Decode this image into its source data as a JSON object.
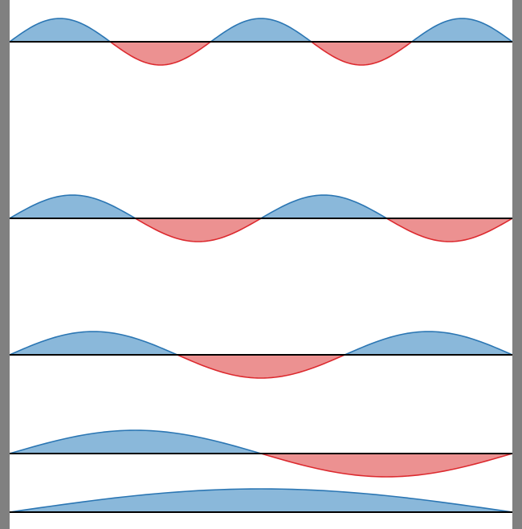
{
  "colors": {
    "positive_fill": "#8ab8da",
    "positive_stroke": "#2b76b3",
    "negative_fill": "#ec9191",
    "negative_stroke": "#dc2a2f",
    "baseline": "#000000",
    "frame": "#808080",
    "background": "#ffffff"
  },
  "waves": [
    {
      "id": "wave-1",
      "half_cycles": 5
    },
    {
      "id": "wave-2",
      "half_cycles": 4
    },
    {
      "id": "wave-3",
      "half_cycles": 3
    },
    {
      "id": "wave-4",
      "half_cycles": 2
    },
    {
      "id": "wave-5",
      "half_cycles": 1
    }
  ]
}
